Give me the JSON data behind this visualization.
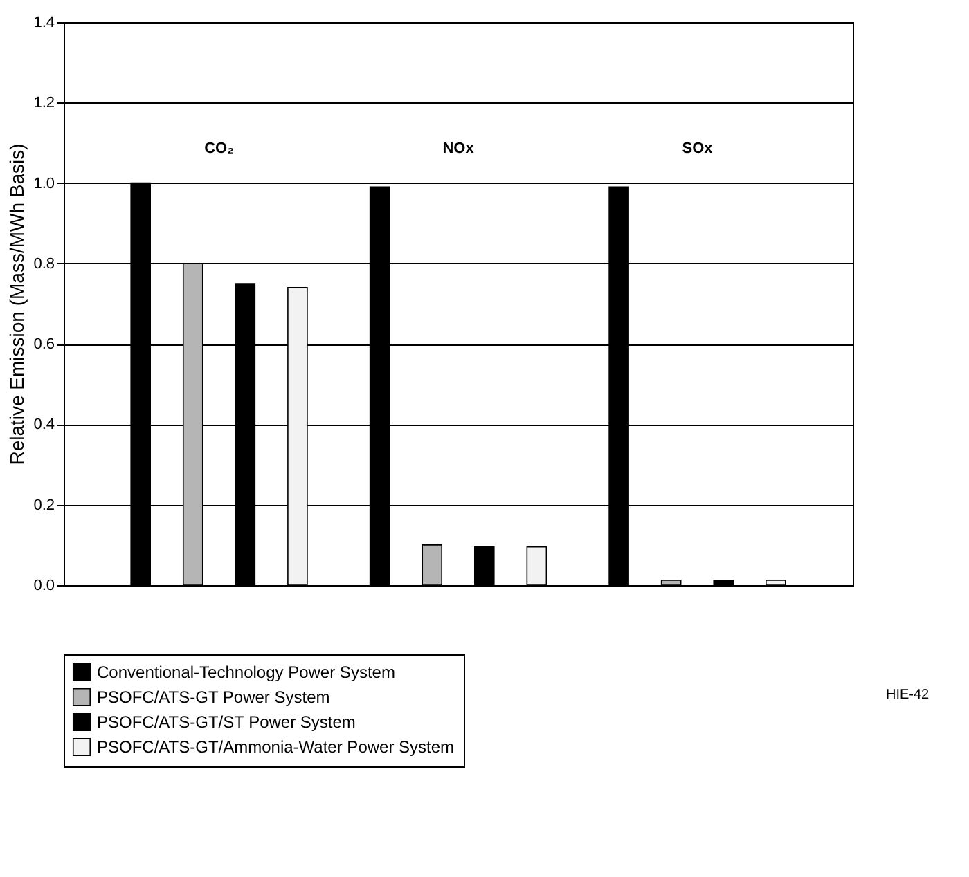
{
  "chart_data": {
    "type": "bar",
    "ylabel": "Relative Emission (Mass/MWh Basis)",
    "categories": [
      "CO₂",
      "NOx",
      "SOx"
    ],
    "series": [
      {
        "name": "Conventional-Technology Power System",
        "color": "#000000",
        "values": [
          1.0,
          0.99,
          0.99
        ]
      },
      {
        "name": "PSOFC/ATS-GT Power System",
        "color": "#b5b5b5",
        "values": [
          0.8,
          0.1,
          0.012
        ]
      },
      {
        "name": "PSOFC/ATS-GT/ST Power System",
        "color": "#000000",
        "values": [
          0.75,
          0.095,
          0.012
        ]
      },
      {
        "name": "PSOFC/ATS-GT/Ammonia-Water Power System",
        "color": "#f2f2f2",
        "values": [
          0.74,
          0.095,
          0.012
        ]
      }
    ],
    "ylim": [
      0,
      1.4
    ],
    "yticks": [
      {
        "value": 0,
        "label": "0.0"
      },
      {
        "value": 0.2,
        "label": "0.2"
      },
      {
        "value": 0.4,
        "label": "0.4"
      },
      {
        "value": 0.6,
        "label": "0.6"
      },
      {
        "value": 0.8,
        "label": "0.8"
      },
      {
        "value": 1.0,
        "label": "1.0"
      },
      {
        "value": 1.2,
        "label": "1.2"
      },
      {
        "value": 1.4,
        "label": "1.4"
      }
    ],
    "grid": "y",
    "legend": "bottom",
    "annotations": [
      "HIE-42"
    ]
  }
}
